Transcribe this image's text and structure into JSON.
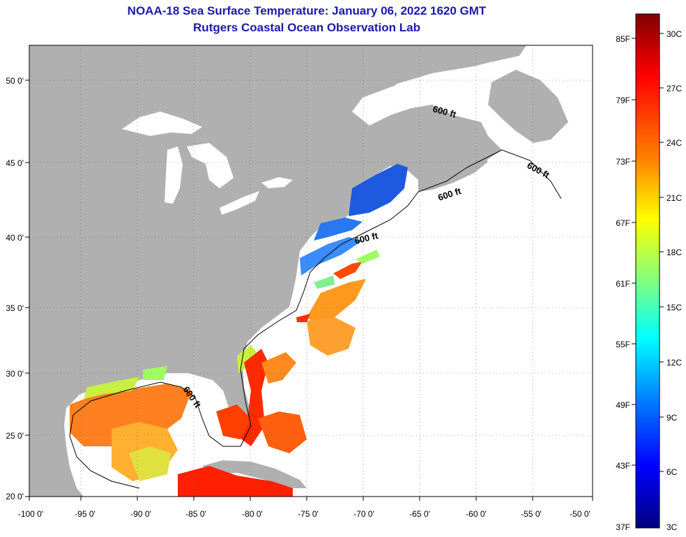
{
  "title": "NOAA-18 Sea Surface Temperature:  January 06, 2022 1620 GMT",
  "subtitle": "Rutgers Coastal Ocean Observation Lab",
  "axes": {
    "lon_ticks": [
      "-100 0'",
      "-95 0'",
      "-90 0'",
      "-85 0'",
      "-80 0'",
      "-75 0'",
      "-70 0'",
      "-65 0'",
      "-60 0'",
      "-55 0'",
      "-50 0'"
    ],
    "lat_ticks": [
      "50 0'",
      "45 0'",
      "40 0'",
      "35 0'",
      "30 0'",
      "25 0'",
      "20 0'"
    ]
  },
  "contour_labels": [
    "600 ft",
    "600 ft",
    "600 ft",
    "600 ft",
    "600 ft"
  ],
  "colorbar": {
    "fahrenheit": [
      "85F",
      "79F",
      "73F",
      "67F",
      "61F",
      "55F",
      "49F",
      "43F",
      "37F"
    ],
    "celsius": [
      "30C",
      "27C",
      "24C",
      "21C",
      "18C",
      "15C",
      "12C",
      "9C",
      "6C",
      "3C"
    ],
    "colors": [
      "#7f0000",
      "#ff0000",
      "#ff8000",
      "#ffff00",
      "#80ff80",
      "#00ffff",
      "#0080ff",
      "#0000ff",
      "#00007f"
    ]
  },
  "colors": {
    "land": "#b0b0b0",
    "title": "#1a1aa8",
    "no_data": "#ffffff"
  }
}
